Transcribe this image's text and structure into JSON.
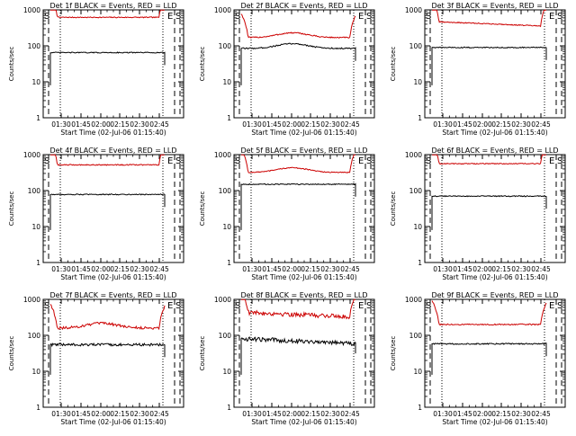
{
  "chart_data": [
    {
      "type": "line",
      "title": "Det 1f BLACK = Events, RED = LLD",
      "xlabel": "Start Time (02-Jul-06 01:15:40)",
      "ylabel": "Counts/sec",
      "yscale": "log",
      "ylim": [
        1,
        1000
      ],
      "x_ticks": [
        "01:30",
        "01:45",
        "02:00",
        "02:15",
        "02:30",
        "02:45"
      ],
      "y_ticks": [
        "1",
        "10",
        "100",
        "1000"
      ],
      "markers": {
        "start": "S",
        "end": "E"
      },
      "series": [
        {
          "color": "#cc0000",
          "base": 620,
          "curve": "flat",
          "noise": 0.03
        },
        {
          "color": "#000000",
          "base": 65,
          "curve": "flat",
          "noise": 0.03
        }
      ]
    },
    {
      "type": "line",
      "title": "Det 2f BLACK = Events, RED = LLD",
      "xlabel": "Start Time (02-Jul-06 01:15:40)",
      "ylabel": "Counts/sec",
      "yscale": "log",
      "ylim": [
        1,
        1000
      ],
      "x_ticks": [
        "01:30",
        "01:45",
        "02:00",
        "02:15",
        "02:30",
        "02:45"
      ],
      "y_ticks": [
        "1",
        "10",
        "100",
        "1000"
      ],
      "markers": {
        "start": "S",
        "end": "E"
      },
      "series": [
        {
          "color": "#cc0000",
          "base": 170,
          "curve": "hump",
          "noise": 0.04
        },
        {
          "color": "#000000",
          "base": 85,
          "curve": "hump",
          "noise": 0.04
        }
      ]
    },
    {
      "type": "line",
      "title": "Det 3f BLACK = Events, RED = LLD",
      "xlabel": "Start Time (02-Jul-06 01:15:40)",
      "ylabel": "Counts/sec",
      "yscale": "log",
      "ylim": [
        1,
        1000
      ],
      "x_ticks": [
        "01:30",
        "01:45",
        "02:00",
        "02:15",
        "02:30",
        "02:45"
      ],
      "y_ticks": [
        "1",
        "10",
        "100",
        "1000"
      ],
      "markers": {
        "start": "S",
        "end": "E"
      },
      "series": [
        {
          "color": "#cc0000",
          "base": 410,
          "curve": "slope",
          "noise": 0.03
        },
        {
          "color": "#000000",
          "base": 90,
          "curve": "flat",
          "noise": 0.03
        }
      ]
    },
    {
      "type": "line",
      "title": "Det 4f BLACK = Events, RED = LLD",
      "xlabel": "Start Time (02-Jul-06 01:15:40)",
      "ylabel": "Counts/sec",
      "yscale": "log",
      "ylim": [
        1,
        1000
      ],
      "x_ticks": [
        "01:30",
        "01:45",
        "02:00",
        "02:15",
        "02:30",
        "02:45"
      ],
      "y_ticks": [
        "1",
        "10",
        "100",
        "1000"
      ],
      "markers": {
        "start": "S",
        "end": "E"
      },
      "series": [
        {
          "color": "#cc0000",
          "base": 520,
          "curve": "flat",
          "noise": 0.03
        },
        {
          "color": "#000000",
          "base": 78,
          "curve": "flat",
          "noise": 0.03
        }
      ]
    },
    {
      "type": "line",
      "title": "Det 5f BLACK = Events, RED = LLD",
      "xlabel": "Start Time (02-Jul-06 01:15:40)",
      "ylabel": "Counts/sec",
      "yscale": "log",
      "ylim": [
        1,
        1000
      ],
      "x_ticks": [
        "01:30",
        "01:45",
        "02:00",
        "02:15",
        "02:30",
        "02:45"
      ],
      "y_ticks": [
        "1",
        "10",
        "100",
        "1000"
      ],
      "markers": {
        "start": "S",
        "end": "E"
      },
      "series": [
        {
          "color": "#cc0000",
          "base": 320,
          "curve": "hump",
          "noise": 0.03
        },
        {
          "color": "#000000",
          "base": 150,
          "curve": "flat",
          "noise": 0.03
        }
      ]
    },
    {
      "type": "line",
      "title": "Det 6f BLACK = Events, RED = LLD",
      "xlabel": "Start Time (02-Jul-06 01:15:40)",
      "ylabel": "Counts/sec",
      "yscale": "log",
      "ylim": [
        1,
        1000
      ],
      "x_ticks": [
        "01:30",
        "01:45",
        "02:00",
        "02:15",
        "02:30",
        "02:45"
      ],
      "y_ticks": [
        "1",
        "10",
        "100",
        "1000"
      ],
      "markers": {
        "start": "S",
        "end": "E"
      },
      "series": [
        {
          "color": "#cc0000",
          "base": 560,
          "curve": "flat",
          "noise": 0.03
        },
        {
          "color": "#000000",
          "base": 70,
          "curve": "flat",
          "noise": 0.03
        }
      ]
    },
    {
      "type": "line",
      "title": "Det 7f BLACK = Events, RED = LLD",
      "xlabel": "Start Time (02-Jul-06 01:15:40)",
      "ylabel": "Counts/sec",
      "yscale": "log",
      "ylim": [
        1,
        1000
      ],
      "x_ticks": [
        "01:30",
        "01:45",
        "02:00",
        "02:15",
        "02:30",
        "02:45"
      ],
      "y_ticks": [
        "1",
        "10",
        "100",
        "1000"
      ],
      "markers": {
        "start": "S",
        "end": "E"
      },
      "series": [
        {
          "color": "#cc0000",
          "base": 160,
          "curve": "hump",
          "noise": 0.08
        },
        {
          "color": "#000000",
          "base": 55,
          "curve": "flat",
          "noise": 0.08
        }
      ]
    },
    {
      "type": "line",
      "title": "Det 8f BLACK = Events, RED = LLD",
      "xlabel": "Start Time (02-Jul-06 01:15:40)",
      "ylabel": "Counts/sec",
      "yscale": "log",
      "ylim": [
        1,
        1000
      ],
      "x_ticks": [
        "01:30",
        "01:45",
        "02:00",
        "02:15",
        "02:30",
        "02:45"
      ],
      "y_ticks": [
        "1",
        "10",
        "100",
        "1000"
      ],
      "markers": {
        "start": "S",
        "end": "E"
      },
      "series": [
        {
          "color": "#cc0000",
          "base": 380,
          "curve": "slope",
          "noise": 0.14
        },
        {
          "color": "#000000",
          "base": 70,
          "curve": "slope",
          "noise": 0.14
        }
      ]
    },
    {
      "type": "line",
      "title": "Det 9f BLACK = Events, RED = LLD",
      "xlabel": "Start Time (02-Jul-06 01:15:40)",
      "ylabel": "Counts/sec",
      "yscale": "log",
      "ylim": [
        1,
        1000
      ],
      "x_ticks": [
        "01:30",
        "01:45",
        "02:00",
        "02:15",
        "02:30",
        "02:45"
      ],
      "y_ticks": [
        "1",
        "10",
        "100",
        "1000"
      ],
      "markers": {
        "start": "S",
        "end": "E"
      },
      "series": [
        {
          "color": "#cc0000",
          "base": 200,
          "curve": "flat",
          "noise": 0.04
        },
        {
          "color": "#000000",
          "base": 58,
          "curve": "flat",
          "noise": 0.04
        }
      ]
    }
  ]
}
